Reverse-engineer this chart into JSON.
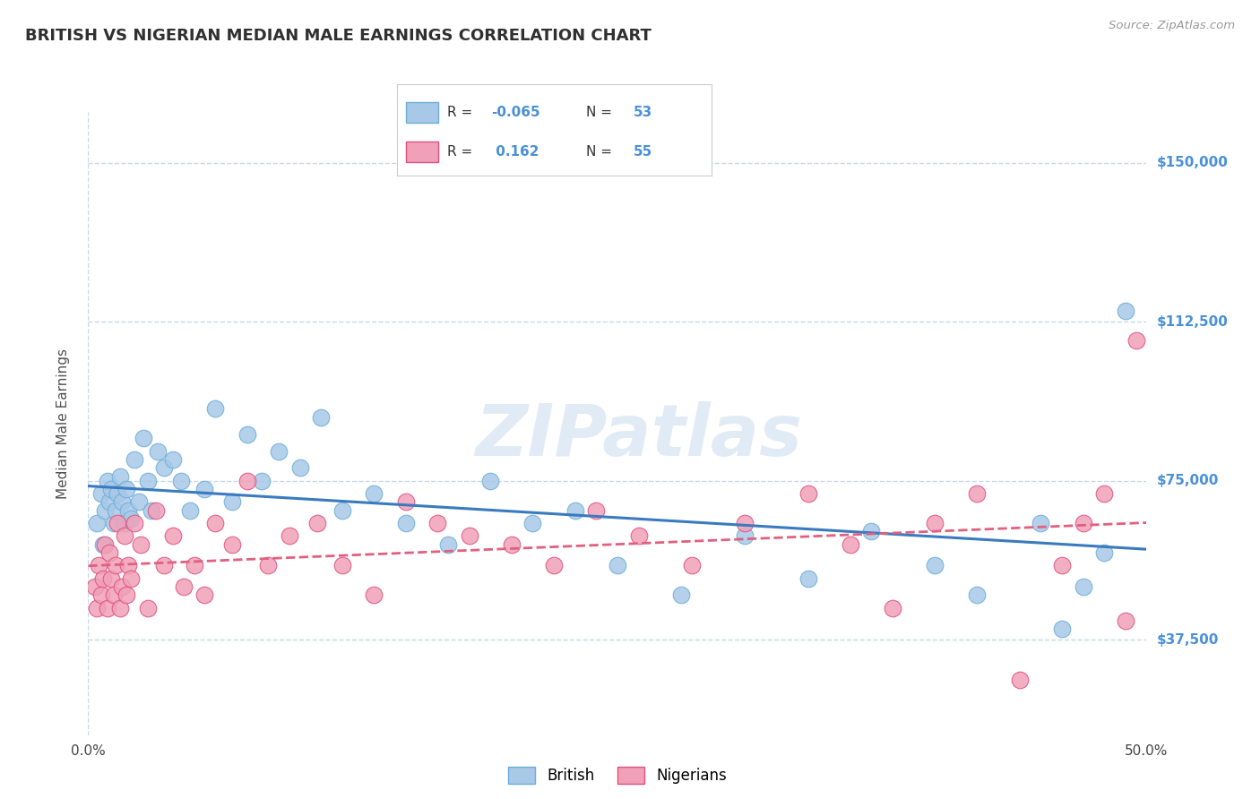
{
  "title": "BRITISH VS NIGERIAN MEDIAN MALE EARNINGS CORRELATION CHART",
  "source": "Source: ZipAtlas.com",
  "ylabel": "Median Male Earnings",
  "xlim": [
    0.0,
    0.5
  ],
  "ylim": [
    15000,
    162000
  ],
  "yticks": [
    37500,
    75000,
    112500,
    150000
  ],
  "ytick_labels": [
    "$37,500",
    "$75,000",
    "$112,500",
    "$150,000"
  ],
  "xticks": [
    0.0,
    0.1,
    0.2,
    0.3,
    0.4,
    0.5
  ],
  "xtick_labels": [
    "0.0%",
    "",
    "",
    "",
    "",
    "50.0%"
  ],
  "british_color": "#a8c8e8",
  "nigerian_color": "#f0a0b8",
  "british_edge_color": "#6baed6",
  "nigerian_edge_color": "#e05080",
  "british_line_color": "#3a7abf",
  "nigerian_line_color": "#e06080",
  "watermark": "ZIPatlas",
  "background_color": "#ffffff",
  "grid_color": "#c8d8e8",
  "title_color": "#303030",
  "ylabel_color": "#505050",
  "ytick_label_color": "#4a90d9",
  "stats_color": "#4a90d9",
  "british_R": -0.065,
  "british_N": 53,
  "nigerian_R": 0.162,
  "nigerian_N": 55,
  "legend_label_british": "British",
  "legend_label_nigerian": "Nigerians",
  "british_x": [
    0.004,
    0.006,
    0.007,
    0.008,
    0.009,
    0.01,
    0.011,
    0.012,
    0.013,
    0.014,
    0.015,
    0.016,
    0.017,
    0.018,
    0.019,
    0.02,
    0.022,
    0.024,
    0.026,
    0.028,
    0.03,
    0.033,
    0.036,
    0.04,
    0.044,
    0.048,
    0.055,
    0.06,
    0.068,
    0.075,
    0.082,
    0.09,
    0.1,
    0.11,
    0.12,
    0.135,
    0.15,
    0.17,
    0.19,
    0.21,
    0.23,
    0.25,
    0.28,
    0.31,
    0.34,
    0.37,
    0.4,
    0.42,
    0.45,
    0.46,
    0.47,
    0.48,
    0.49
  ],
  "british_y": [
    65000,
    72000,
    60000,
    68000,
    75000,
    70000,
    73000,
    65000,
    68000,
    72000,
    76000,
    70000,
    65000,
    73000,
    68000,
    66000,
    80000,
    70000,
    85000,
    75000,
    68000,
    82000,
    78000,
    80000,
    75000,
    68000,
    73000,
    92000,
    70000,
    86000,
    75000,
    82000,
    78000,
    90000,
    68000,
    72000,
    65000,
    60000,
    75000,
    65000,
    68000,
    55000,
    48000,
    62000,
    52000,
    63000,
    55000,
    48000,
    65000,
    40000,
    50000,
    58000,
    115000
  ],
  "nigerian_x": [
    0.003,
    0.004,
    0.005,
    0.006,
    0.007,
    0.008,
    0.009,
    0.01,
    0.011,
    0.012,
    0.013,
    0.014,
    0.015,
    0.016,
    0.017,
    0.018,
    0.019,
    0.02,
    0.022,
    0.025,
    0.028,
    0.032,
    0.036,
    0.04,
    0.045,
    0.05,
    0.055,
    0.06,
    0.068,
    0.075,
    0.085,
    0.095,
    0.108,
    0.12,
    0.135,
    0.15,
    0.165,
    0.18,
    0.2,
    0.22,
    0.24,
    0.26,
    0.285,
    0.31,
    0.34,
    0.36,
    0.38,
    0.4,
    0.42,
    0.44,
    0.46,
    0.47,
    0.48,
    0.49,
    0.495
  ],
  "nigerian_y": [
    50000,
    45000,
    55000,
    48000,
    52000,
    60000,
    45000,
    58000,
    52000,
    48000,
    55000,
    65000,
    45000,
    50000,
    62000,
    48000,
    55000,
    52000,
    65000,
    60000,
    45000,
    68000,
    55000,
    62000,
    50000,
    55000,
    48000,
    65000,
    60000,
    75000,
    55000,
    62000,
    65000,
    55000,
    48000,
    70000,
    65000,
    62000,
    60000,
    55000,
    68000,
    62000,
    55000,
    65000,
    72000,
    60000,
    45000,
    65000,
    72000,
    28000,
    55000,
    65000,
    72000,
    42000,
    108000
  ]
}
